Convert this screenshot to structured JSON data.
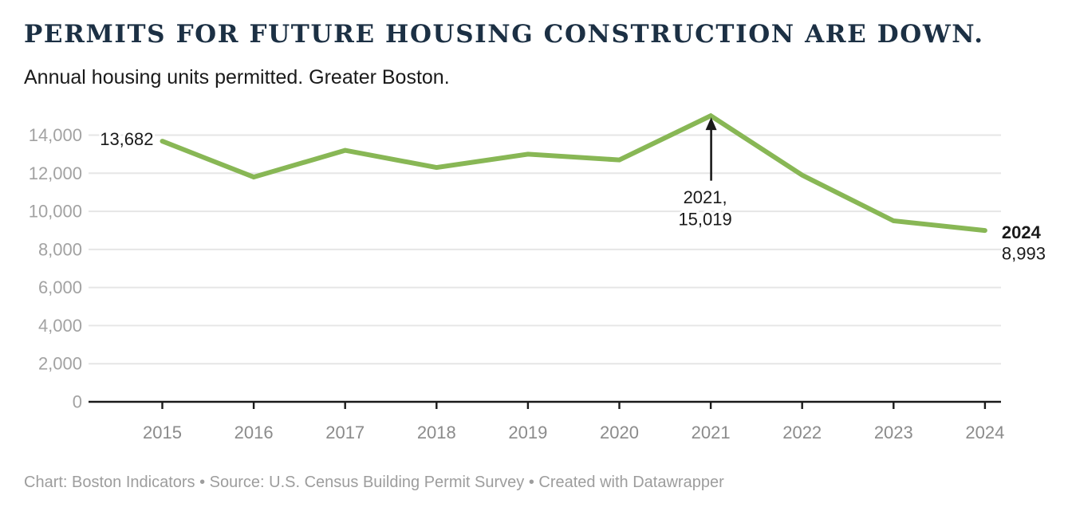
{
  "header": {
    "title": "PERMITS FOR FUTURE HOUSING CONSTRUCTION ARE DOWN.",
    "subtitle": "Annual housing units permitted. Greater Boston."
  },
  "footer": {
    "text": "Chart: Boston Indicators • Source: U.S. Census Building Permit Survey • Created with Datawrapper"
  },
  "chart_data": {
    "type": "line",
    "title": "PERMITS FOR FUTURE HOUSING CONSTRUCTION ARE DOWN.",
    "subtitle": "Annual housing units permitted. Greater Boston.",
    "categories": [
      "2015",
      "2016",
      "2017",
      "2018",
      "2019",
      "2020",
      "2021",
      "2022",
      "2023",
      "2024"
    ],
    "values": [
      13682,
      11800,
      13200,
      12300,
      13000,
      12700,
      15019,
      11900,
      9500,
      8993
    ],
    "y_ticks": [
      0,
      2000,
      4000,
      6000,
      8000,
      10000,
      12000,
      14000
    ],
    "ylim": [
      0,
      15200
    ],
    "xlabel": "",
    "ylabel": "",
    "grid": "horizontal",
    "legend": "none",
    "annotations": [
      {
        "type": "point-label",
        "category": "2015",
        "text": "13,682"
      },
      {
        "type": "arrow-callout",
        "category": "2021",
        "lines": [
          "2021,",
          "15,019"
        ]
      },
      {
        "type": "end-label",
        "category": "2024",
        "year_text": "2024",
        "value_text": "8,993"
      }
    ]
  },
  "colors": {
    "title": "#1c3044",
    "subtitle_text": "#1a1a1a",
    "line": "#88b755",
    "grid": "#e6e6e6",
    "axis": "#1a1a1a",
    "x_tick_label": "#8b8b8b",
    "y_tick_label": "#a2a2a2",
    "label_text": "#1a1a1a",
    "footer_text": "#9d9d9d"
  }
}
